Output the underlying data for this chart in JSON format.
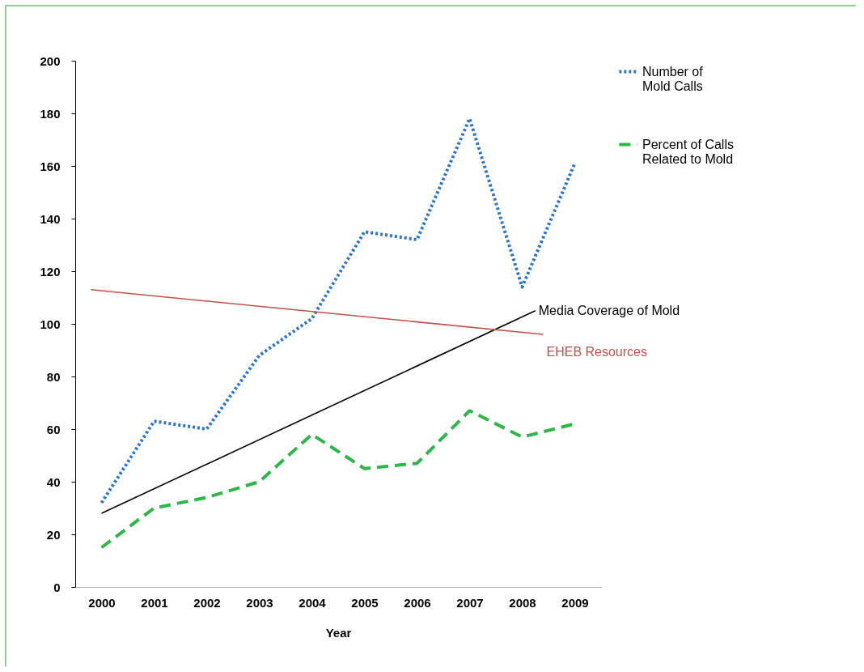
{
  "chart_data": {
    "type": "line",
    "xlabel": "Year",
    "x": [
      2000,
      2001,
      2002,
      2003,
      2004,
      2005,
      2006,
      2007,
      2008,
      2009
    ],
    "xlim": [
      1999.5,
      2009.5
    ],
    "xticks": [
      2000,
      2001,
      2002,
      2003,
      2004,
      2005,
      2006,
      2007,
      2008,
      2009
    ],
    "ylim": [
      0,
      200
    ],
    "yticks": [
      0,
      20,
      40,
      60,
      80,
      100,
      120,
      140,
      160,
      180,
      200
    ],
    "grid": false,
    "legend": "right",
    "marker": "none",
    "series": [
      {
        "name": "Number of Mold Calls",
        "color": "#2e75c4",
        "line_style": "dotted",
        "values": [
          32,
          63,
          60,
          88,
          102,
          135,
          132,
          178,
          114,
          161
        ]
      },
      {
        "name": "Percent of Calls Related to Mold",
        "color": "#2fb54a",
        "line_style": "dashed",
        "values": [
          15,
          30,
          34,
          40,
          58,
          45,
          47,
          67,
          57,
          62
        ]
      },
      {
        "name": "Media Coverage of Mold",
        "color": "#000000",
        "line_style": "solid",
        "x": [
          2000,
          2008.25
        ],
        "values": [
          28,
          105
        ]
      },
      {
        "name": "EHEB Resources",
        "color": "#c0504d",
        "line_style": "solid",
        "x": [
          1999.8,
          2008.4
        ],
        "values": [
          113,
          96
        ]
      }
    ]
  }
}
